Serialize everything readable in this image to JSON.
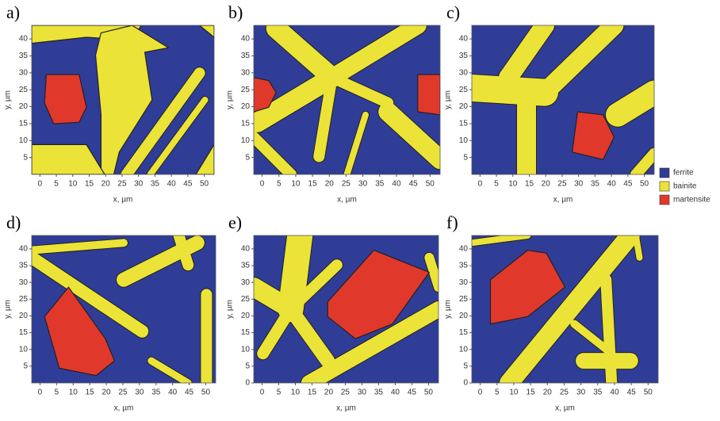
{
  "chart_data": [
    {
      "type": "phase-map",
      "title": "a)",
      "xlabel": "x, µm",
      "ylabel": "y, µm",
      "xlim": [
        -2.5,
        53
      ],
      "ylim": [
        0,
        44
      ],
      "xticks": [
        0,
        5,
        10,
        15,
        20,
        25,
        30,
        35,
        40,
        45,
        50
      ],
      "yticks": [
        5,
        10,
        15,
        20,
        25,
        30,
        35,
        40
      ]
    },
    {
      "type": "phase-map",
      "title": "b)",
      "xlabel": "x, µm",
      "ylabel": "y, µm",
      "xlim": [
        -2.5,
        53
      ],
      "ylim": [
        0,
        44
      ],
      "xticks": [
        0,
        5,
        10,
        15,
        20,
        25,
        30,
        35,
        40,
        45,
        50
      ],
      "yticks": [
        5,
        10,
        15,
        20,
        25,
        30,
        35,
        40
      ]
    },
    {
      "type": "phase-map",
      "title": "c)",
      "xlabel": "x, µm",
      "ylabel": "y, µm",
      "xlim": [
        -2.5,
        53
      ],
      "ylim": [
        0,
        44
      ],
      "xticks": [
        0,
        5,
        10,
        15,
        20,
        25,
        30,
        35,
        40,
        45,
        50
      ],
      "yticks": [
        5,
        10,
        15,
        20,
        25,
        30,
        35,
        40
      ]
    },
    {
      "type": "phase-map",
      "title": "d)",
      "xlabel": "x, µm",
      "ylabel": "y, µm",
      "xlim": [
        -2.5,
        53
      ],
      "ylim": [
        0,
        44
      ],
      "xticks": [
        0,
        5,
        10,
        15,
        20,
        25,
        30,
        35,
        40,
        45,
        50
      ],
      "yticks": [
        5,
        10,
        15,
        20,
        25,
        30,
        35,
        40
      ]
    },
    {
      "type": "phase-map",
      "title": "e)",
      "xlabel": "x, µm",
      "ylabel": "y, µm",
      "xlim": [
        -2.5,
        53
      ],
      "ylim": [
        0,
        44
      ],
      "xticks": [
        0,
        5,
        10,
        15,
        20,
        25,
        30,
        35,
        40,
        45,
        50
      ],
      "yticks": [
        0,
        5,
        10,
        15,
        20,
        25,
        30,
        35,
        40
      ]
    },
    {
      "type": "phase-map",
      "title": "f)",
      "xlabel": "x, µm",
      "ylabel": "y, µm",
      "xlim": [
        -2.5,
        53
      ],
      "ylim": [
        0,
        44
      ],
      "xticks": [
        0,
        5,
        10,
        15,
        20,
        25,
        30,
        35,
        40,
        45,
        50
      ],
      "yticks": [
        0,
        5,
        10,
        15,
        20,
        25,
        30,
        35,
        40
      ]
    }
  ],
  "legend": {
    "entries": [
      {
        "name": "ferrite",
        "color": "#2f3d97"
      },
      {
        "name": "bainite",
        "color": "#ebe337"
      },
      {
        "name": "martensite",
        "color": "#e0392b"
      }
    ]
  }
}
